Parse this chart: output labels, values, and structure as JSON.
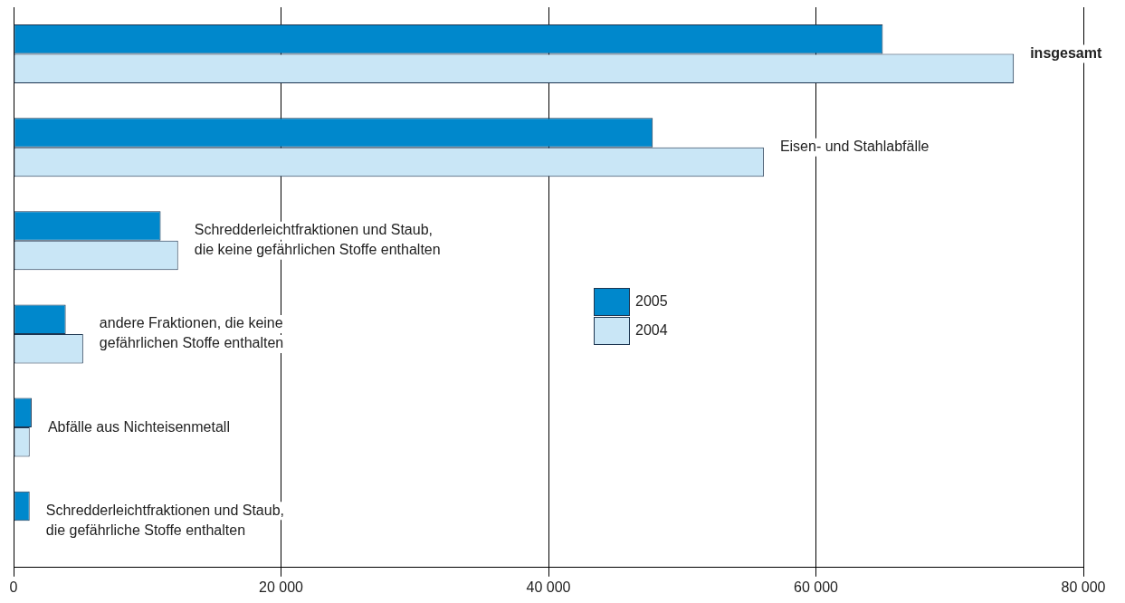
{
  "chart_data": {
    "type": "bar",
    "orientation": "horizontal",
    "categories": [
      "insgesamt",
      "Eisen- und Stahlabfälle",
      "Schredderleichtfraktionen und Staub,\ndie keine gefährlichen Stoffe enthalten",
      "andere Fraktionen, die keine\ngefährlichen Stoffe enthalten",
      "Abfälle aus Nichteisenmetall",
      "Schredderleichtfraktionen und Staub,\ndie gefährliche Stoffe enthalten"
    ],
    "series": [
      {
        "name": "2005",
        "color": "#0088cc",
        "values": [
          65000,
          47800,
          11000,
          3900,
          1350,
          1200
        ]
      },
      {
        "name": "2004",
        "color": "#c9e6f6",
        "values": [
          74800,
          56100,
          12300,
          5200,
          1200,
          null
        ]
      }
    ],
    "xlim": [
      0,
      80000
    ],
    "xticks": [
      0,
      {
        "value": 20000,
        "label": "20 000"
      },
      {
        "value": 40000,
        "label": "40 000"
      },
      {
        "value": 60000,
        "label": "60 000"
      },
      {
        "value": 80000,
        "label": "80 000"
      }
    ],
    "grid": "x",
    "legend": "center"
  }
}
